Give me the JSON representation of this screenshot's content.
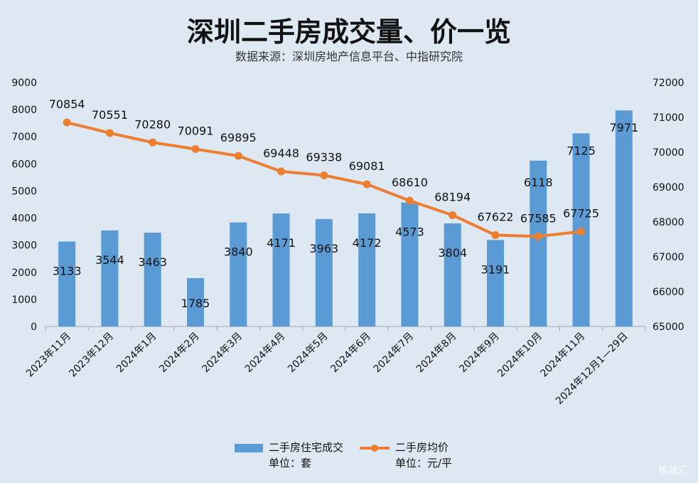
{
  "title": "深圳二手房成交量、价一览",
  "subtitle": "数据来源：深圳房地产信息平台、中指研究院",
  "watermark": "格隆汇",
  "legend": {
    "bar_label": "二手房住宅成交",
    "bar_unit": "单位：套",
    "line_label": "二手房均价",
    "line_unit": "单位：元/平"
  },
  "colors": {
    "bar": "#5b9bd5",
    "line": "#ed7d31",
    "background": "#dde8f3"
  },
  "chart_data": {
    "type": "bar+line",
    "categories": [
      "2023年11月",
      "2023年12月",
      "2024年1月",
      "2024年2月",
      "2024年3月",
      "2024年4月",
      "2024年5月",
      "2024年6月",
      "2024年7月",
      "2024年8月",
      "2024年9月",
      "2024年10月",
      "2024年11月",
      "2024年12月1—29日"
    ],
    "series": [
      {
        "name": "二手房住宅成交",
        "type": "bar",
        "axis": "left",
        "values": [
          3133,
          3544,
          3463,
          1785,
          3840,
          4171,
          3963,
          4172,
          4573,
          3804,
          3191,
          6118,
          7125,
          7971
        ]
      },
      {
        "name": "二手房均价",
        "type": "line",
        "axis": "right",
        "values": [
          70854,
          70551,
          70280,
          70091,
          69895,
          69448,
          69338,
          69081,
          68610,
          68194,
          67622,
          67585,
          67725,
          null
        ]
      }
    ],
    "ylim_left": [
      0,
      9000
    ],
    "ylim_right": [
      65000,
      72000
    ],
    "yticks_left": [
      "0",
      "1000",
      "2000",
      "3000",
      "4000",
      "5000",
      "6000",
      "7000",
      "8000",
      "9000"
    ],
    "yticks_right": [
      "65000",
      "66000",
      "67000",
      "68000",
      "69000",
      "70000",
      "71000",
      "72000"
    ],
    "grid": false,
    "legend_position": "bottom"
  }
}
